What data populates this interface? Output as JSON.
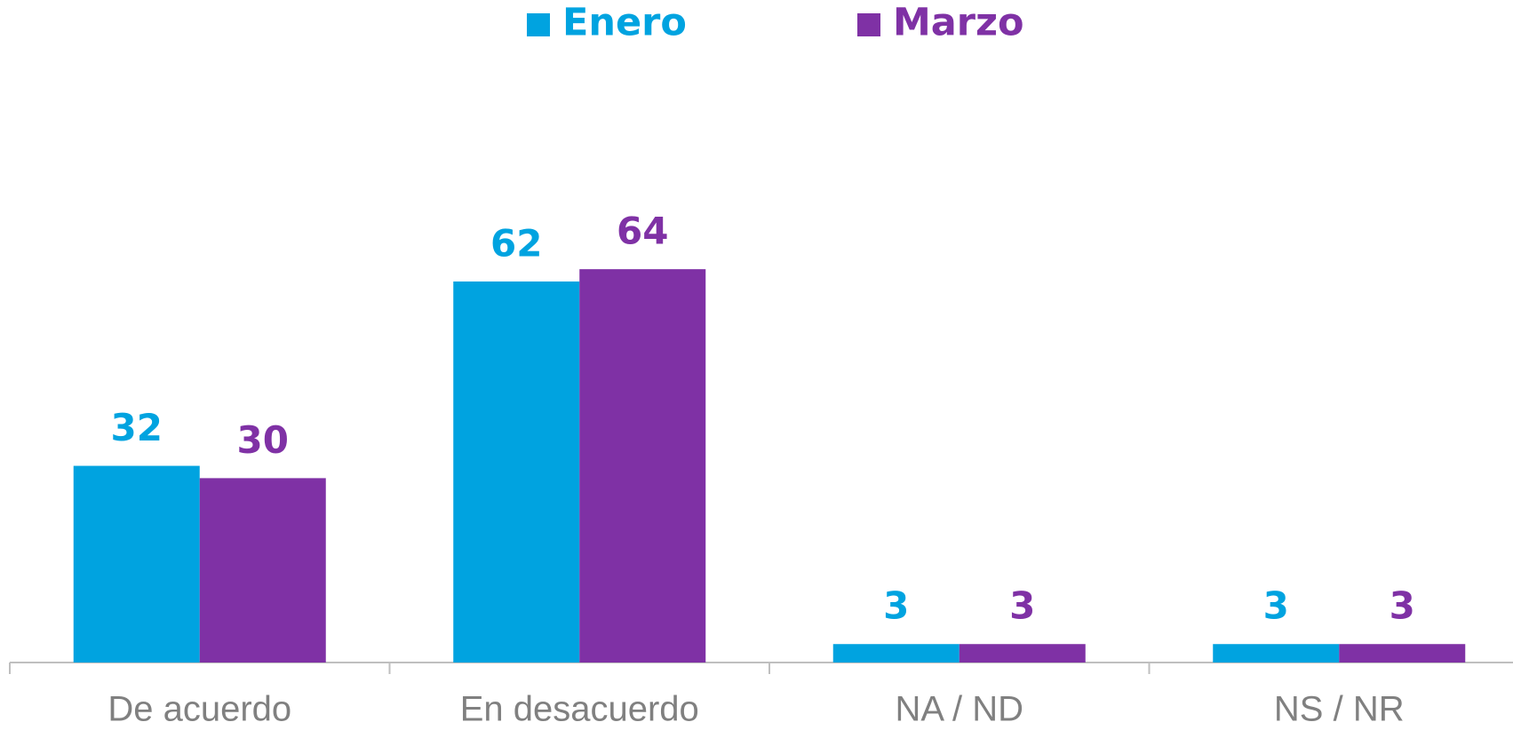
{
  "chart_data": {
    "type": "bar",
    "categories": [
      "De acuerdo",
      "En desacuerdo",
      "NA / ND",
      "NS / NR"
    ],
    "series": [
      {
        "name": "Enero",
        "color": "#00a3e0",
        "values": [
          32,
          62,
          3,
          3
        ]
      },
      {
        "name": "Marzo",
        "color": "#7f31a5",
        "values": [
          30,
          64,
          3,
          3
        ]
      }
    ],
    "ylim": [
      0,
      100
    ],
    "legend": "top",
    "grid": false
  }
}
